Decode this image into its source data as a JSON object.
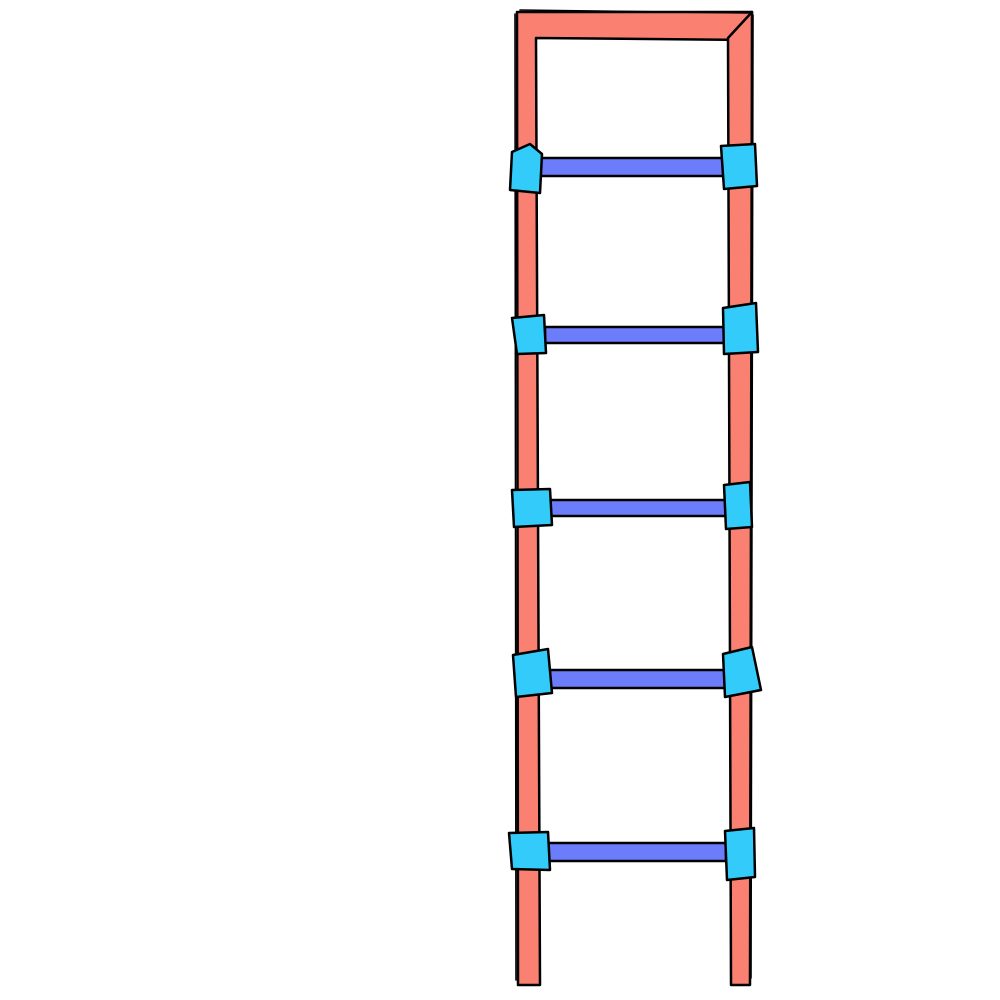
{
  "diagram": {
    "kind": "ladder",
    "rung_count": 5,
    "colors": {
      "rail": "#fa8072",
      "rung": "#6b7dfb",
      "joint": "#33ccfa",
      "outline": "#000000",
      "background": "#ffffff"
    }
  }
}
